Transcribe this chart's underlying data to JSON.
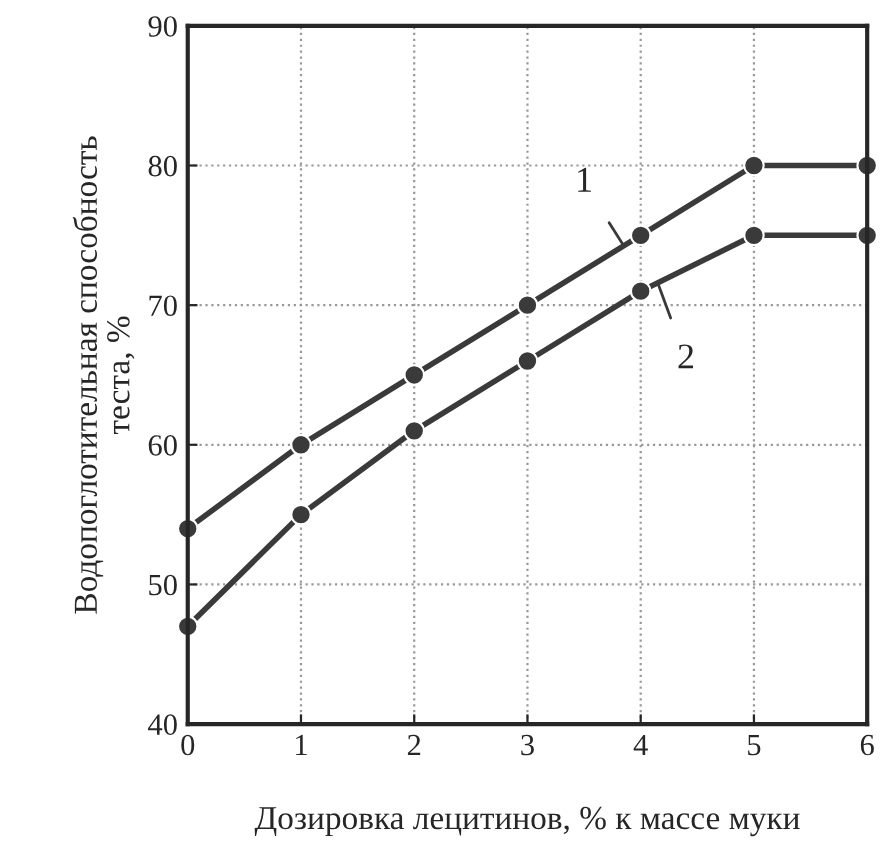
{
  "chart_data": {
    "type": "line",
    "xlabel": "Дозировка лецитинов, % к массе муки",
    "ylabel": "Водопоглотительная способность\nтеста, %",
    "x": [
      0,
      1,
      2,
      3,
      4,
      5,
      6
    ],
    "series": [
      {
        "name": "1",
        "color": "#3a3a3a",
        "values": [
          54,
          60,
          65,
          70,
          75,
          80,
          80
        ]
      },
      {
        "name": "2",
        "color": "#3a3a3a",
        "values": [
          47,
          55,
          61,
          66,
          71,
          75,
          75
        ]
      }
    ],
    "xlim": [
      0,
      6
    ],
    "xticks": [
      0,
      1,
      2,
      3,
      4,
      5,
      6
    ],
    "ylim": [
      40,
      90
    ],
    "yticks": [
      40,
      50,
      60,
      70,
      80,
      90
    ],
    "grid": true,
    "marker": "circle",
    "line_style": "solid"
  }
}
